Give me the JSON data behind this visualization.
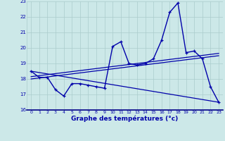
{
  "xlabel": "Graphe des températures (°c)",
  "bg_color": "#cce8e8",
  "line_color": "#0000aa",
  "grid_color": "#aacccc",
  "hours": [
    0,
    1,
    2,
    3,
    4,
    5,
    6,
    7,
    8,
    9,
    10,
    11,
    12,
    13,
    14,
    15,
    16,
    17,
    18,
    19,
    20,
    21,
    22,
    23
  ],
  "temps": [
    18.5,
    18.1,
    18.1,
    17.3,
    16.9,
    17.7,
    17.7,
    17.6,
    17.5,
    17.4,
    20.1,
    20.4,
    19.0,
    18.9,
    19.0,
    19.3,
    20.5,
    22.3,
    22.9,
    19.7,
    19.8,
    19.3,
    17.5,
    16.5
  ],
  "ylim": [
    16,
    23
  ],
  "xlim": [
    -0.5,
    23.5
  ],
  "yticks": [
    16,
    17,
    18,
    19,
    20,
    21,
    22,
    23
  ],
  "xticks": [
    0,
    1,
    2,
    3,
    4,
    5,
    6,
    7,
    8,
    9,
    10,
    11,
    12,
    13,
    14,
    15,
    16,
    17,
    18,
    19,
    20,
    21,
    22,
    23
  ],
  "trend_up1_start": 18.0,
  "trend_up1_end": 19.5,
  "trend_up2_start": 18.15,
  "trend_up2_end": 19.65,
  "trend_down_start": 18.5,
  "trend_down_end": 16.5
}
